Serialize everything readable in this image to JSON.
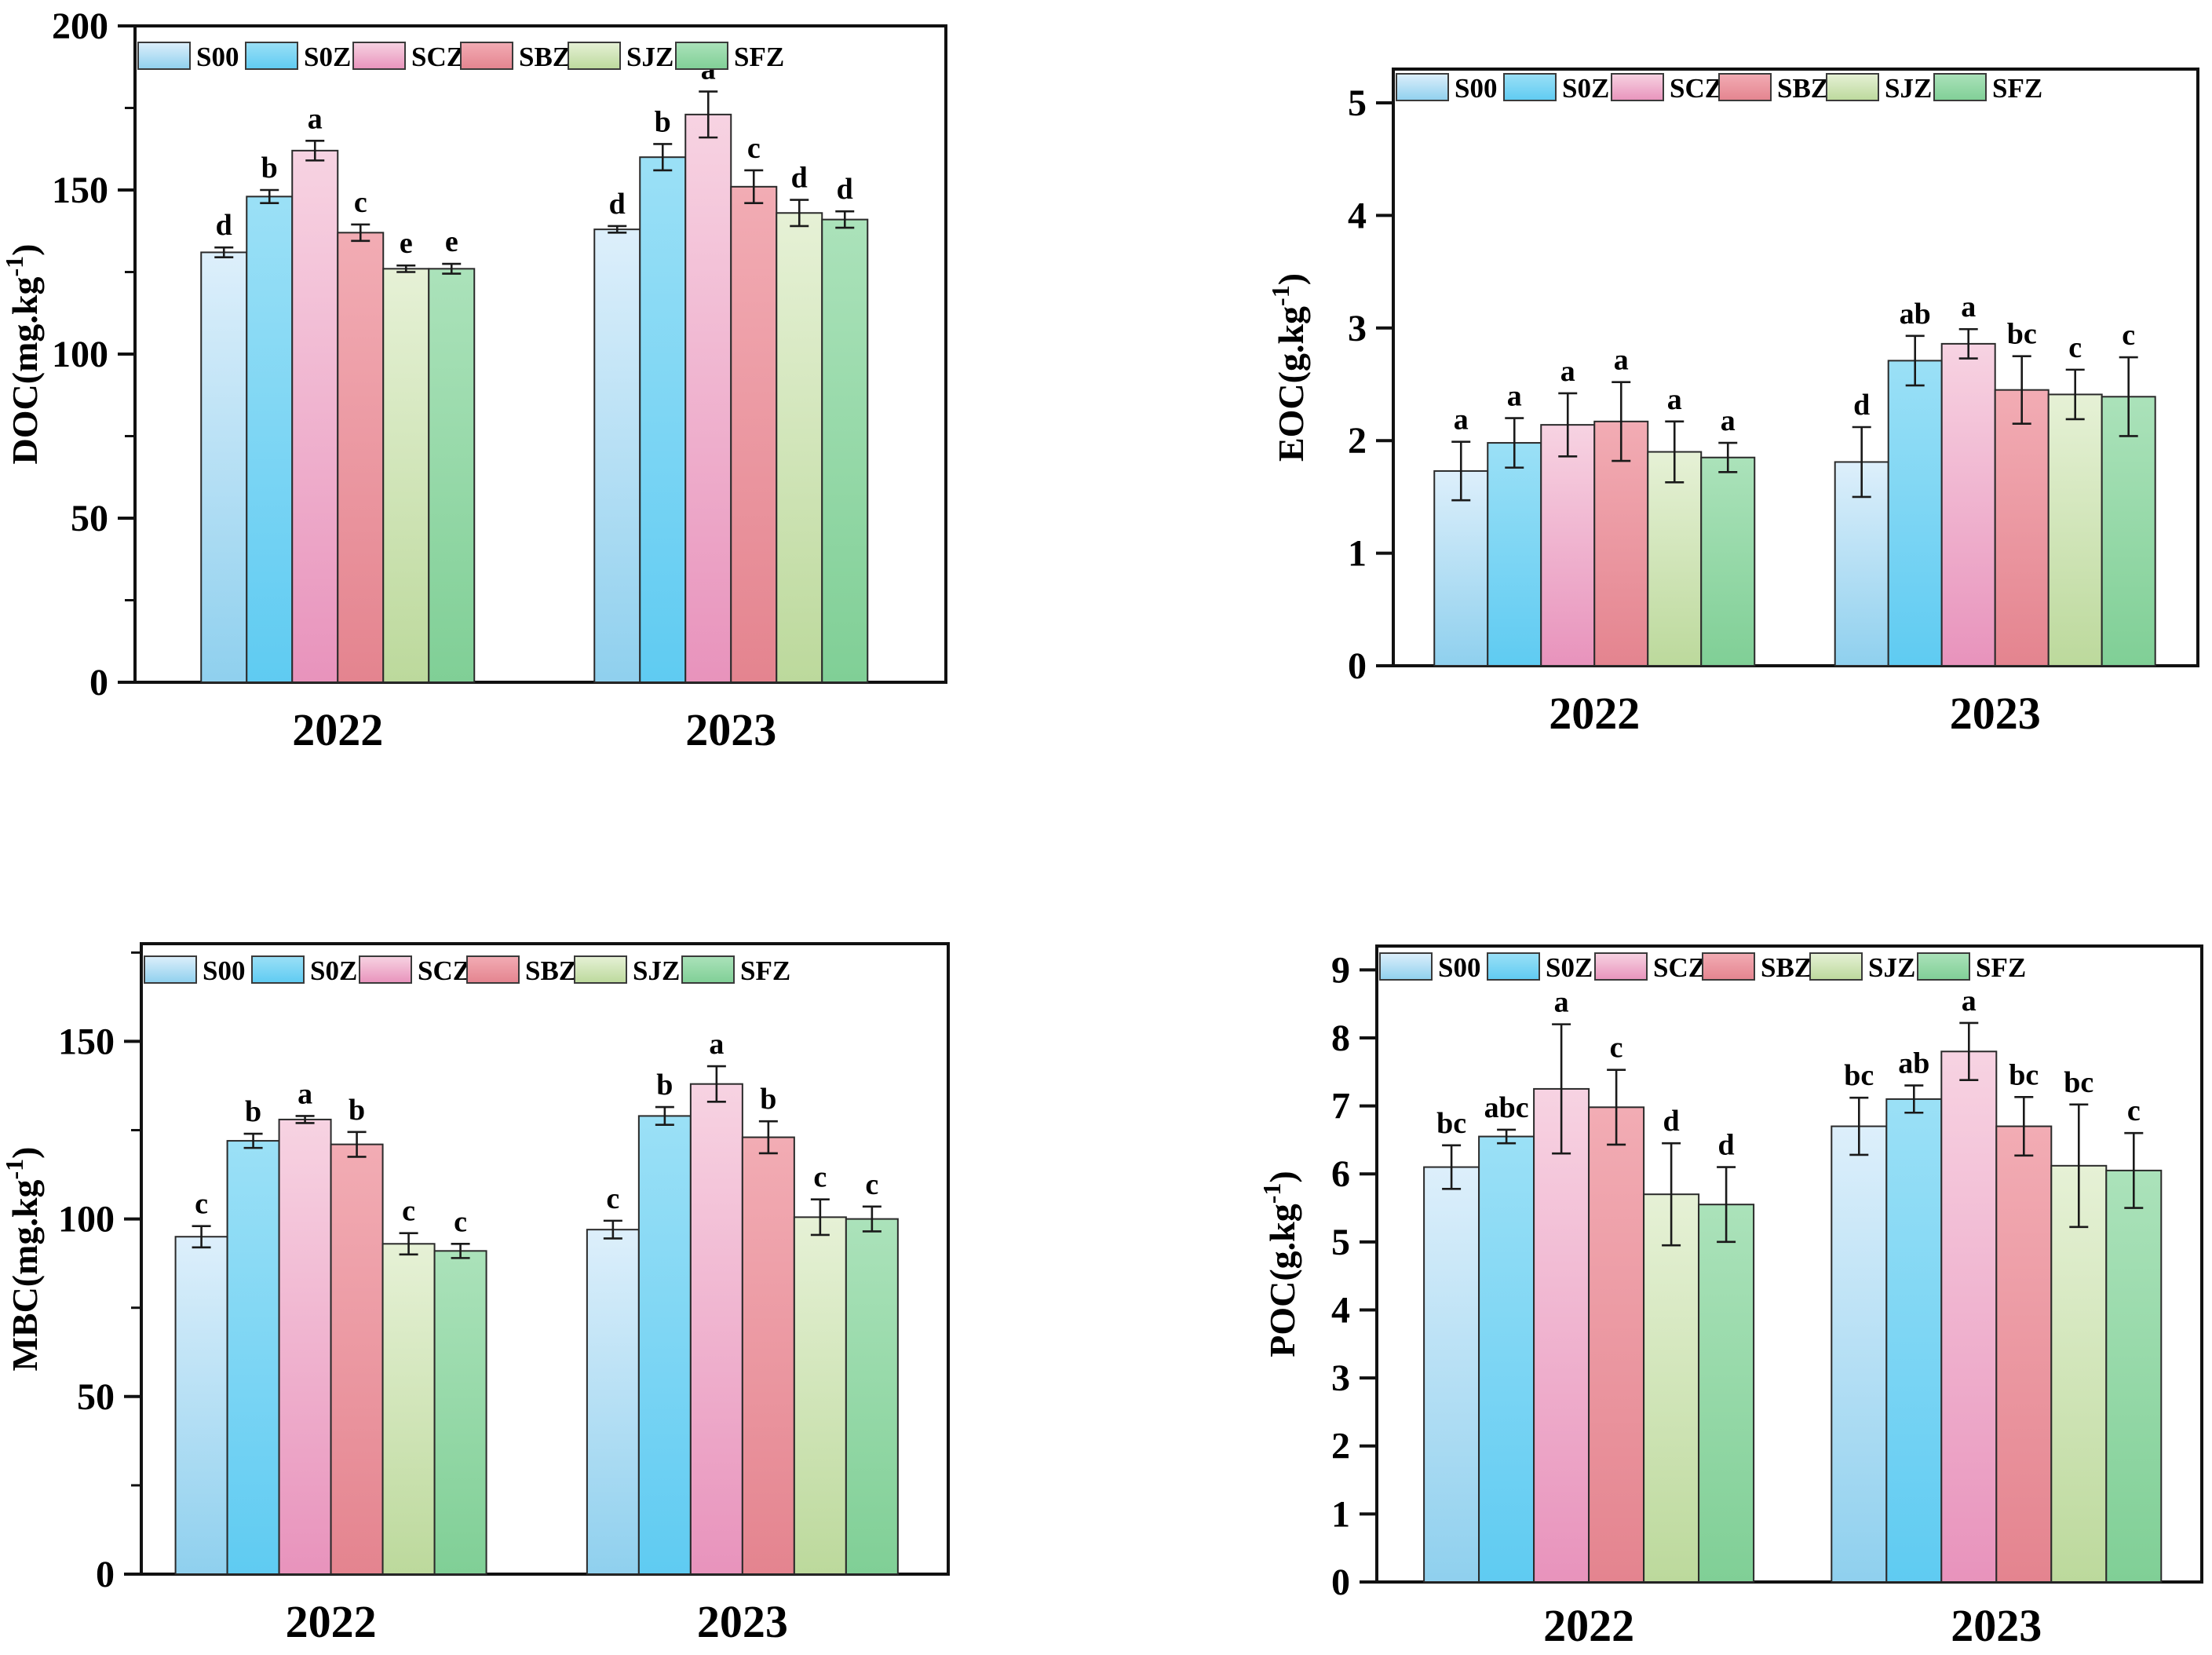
{
  "figure": {
    "background": "#ffffff",
    "years": [
      "2022",
      "2023"
    ],
    "legend_items": [
      "S00",
      "S0Z",
      "SCZ",
      "SBZ",
      "SJZ",
      "SFZ"
    ]
  },
  "palette": {
    "S00": {
      "top": "#ddeffb",
      "bottom": "#8fd0ee"
    },
    "S0Z": {
      "top": "#9be0f6",
      "bottom": "#5fcbf2"
    },
    "SCZ": {
      "top": "#f7d3e2",
      "bottom": "#e893bc"
    },
    "SBZ": {
      "top": "#f2acb4",
      "bottom": "#e4848f"
    },
    "SJZ": {
      "top": "#e6f1d6",
      "bottom": "#bcd99c"
    },
    "SFZ": {
      "top": "#abe2ba",
      "bottom": "#80cf96"
    },
    "bar_stroke": "#2a2a2a",
    "axis_color": "#111111",
    "error_color": "#1a1a1a"
  },
  "chart_data": [
    {
      "id": "DOC",
      "type": "bar",
      "title": "",
      "xlabel": "",
      "ylabel": "DOC(mg.kg⁻¹)",
      "categories": [
        "2022",
        "2023"
      ],
      "ylim": [
        0,
        200
      ],
      "ytick_step": 50,
      "minor_tick_step": 25,
      "grid": false,
      "legend_position": "top-inside",
      "series": [
        {
          "name": "S00",
          "values": [
            131,
            138
          ],
          "errors": [
            1.5,
            1
          ],
          "letters": [
            "d",
            "d"
          ]
        },
        {
          "name": "S0Z",
          "values": [
            148,
            160
          ],
          "errors": [
            2,
            4
          ],
          "letters": [
            "b",
            "b"
          ]
        },
        {
          "name": "SCZ",
          "values": [
            162,
            173
          ],
          "errors": [
            3,
            7
          ],
          "letters": [
            "a",
            "a"
          ]
        },
        {
          "name": "SBZ",
          "values": [
            137,
            151
          ],
          "errors": [
            2.5,
            5
          ],
          "letters": [
            "c",
            "c"
          ]
        },
        {
          "name": "SJZ",
          "values": [
            126,
            143
          ],
          "errors": [
            1,
            4
          ],
          "letters": [
            "e",
            "d"
          ]
        },
        {
          "name": "SFZ",
          "values": [
            126,
            141
          ],
          "errors": [
            1.5,
            2.5
          ],
          "letters": [
            "e",
            "d"
          ]
        }
      ]
    },
    {
      "id": "EOC",
      "type": "bar",
      "title": "",
      "xlabel": "",
      "ylabel": "EOC(g.kg⁻¹)",
      "categories": [
        "2022",
        "2023"
      ],
      "ylim": [
        0,
        5.3
      ],
      "ytick_step": 1,
      "minor_tick_step": 0,
      "grid": false,
      "legend_position": "top-inside",
      "series": [
        {
          "name": "S00",
          "values": [
            1.73,
            1.81
          ],
          "errors": [
            0.26,
            0.31
          ],
          "letters": [
            "a",
            "d"
          ]
        },
        {
          "name": "S0Z",
          "values": [
            1.98,
            2.71
          ],
          "errors": [
            0.22,
            0.22
          ],
          "letters": [
            "a",
            "ab"
          ]
        },
        {
          "name": "SCZ",
          "values": [
            2.14,
            2.86
          ],
          "errors": [
            0.28,
            0.13
          ],
          "letters": [
            "a",
            "a"
          ]
        },
        {
          "name": "SBZ",
          "values": [
            2.17,
            2.45
          ],
          "errors": [
            0.35,
            0.3
          ],
          "letters": [
            "a",
            "bc"
          ]
        },
        {
          "name": "SJZ",
          "values": [
            1.9,
            2.41
          ],
          "errors": [
            0.27,
            0.22
          ],
          "letters": [
            "a",
            "c"
          ]
        },
        {
          "name": "SFZ",
          "values": [
            1.85,
            2.39
          ],
          "errors": [
            0.13,
            0.35
          ],
          "letters": [
            "a",
            "c"
          ]
        }
      ]
    },
    {
      "id": "MBC",
      "type": "bar",
      "title": "",
      "xlabel": "",
      "ylabel": "MBC(mg.kg⁻¹)",
      "categories": [
        "2022",
        "2023"
      ],
      "ylim": [
        0,
        177.5
      ],
      "ytick_step": 50,
      "minor_tick_step": 25,
      "grid": false,
      "legend_position": "top-inside",
      "series": [
        {
          "name": "S00",
          "values": [
            95,
            97
          ],
          "errors": [
            3,
            2.5
          ],
          "letters": [
            "c",
            "c"
          ]
        },
        {
          "name": "S0Z",
          "values": [
            122,
            129
          ],
          "errors": [
            2,
            2.5
          ],
          "letters": [
            "b",
            "b"
          ]
        },
        {
          "name": "SCZ",
          "values": [
            128,
            138
          ],
          "errors": [
            1,
            5
          ],
          "letters": [
            "a",
            "a"
          ]
        },
        {
          "name": "SBZ",
          "values": [
            121,
            123
          ],
          "errors": [
            3.5,
            4.5
          ],
          "letters": [
            "b",
            "b"
          ]
        },
        {
          "name": "SJZ",
          "values": [
            93,
            100.5
          ],
          "errors": [
            3,
            5
          ],
          "letters": [
            "c",
            "c"
          ]
        },
        {
          "name": "SFZ",
          "values": [
            91,
            100
          ],
          "errors": [
            2,
            3.5
          ],
          "letters": [
            "c",
            "c"
          ]
        }
      ]
    },
    {
      "id": "POC",
      "type": "bar",
      "title": "",
      "xlabel": "",
      "ylabel": "POC(g.kg⁻¹)",
      "categories": [
        "2022",
        "2023"
      ],
      "ylim": [
        0,
        9.35
      ],
      "ytick_step": 1,
      "minor_tick_step": 0,
      "grid": false,
      "legend_position": "top-inside",
      "series": [
        {
          "name": "S00",
          "values": [
            6.1,
            6.7
          ],
          "errors": [
            0.32,
            0.42
          ],
          "letters": [
            "bc",
            "bc"
          ]
        },
        {
          "name": "S0Z",
          "values": [
            6.55,
            7.1
          ],
          "errors": [
            0.1,
            0.2
          ],
          "letters": [
            "abc",
            "ab"
          ]
        },
        {
          "name": "SCZ",
          "values": [
            7.25,
            7.8
          ],
          "errors": [
            0.95,
            0.42
          ],
          "letters": [
            "a",
            "a"
          ]
        },
        {
          "name": "SBZ",
          "values": [
            6.98,
            6.7
          ],
          "errors": [
            0.55,
            0.43
          ],
          "letters": [
            "c",
            "bc"
          ]
        },
        {
          "name": "SJZ",
          "values": [
            5.7,
            6.12
          ],
          "errors": [
            0.75,
            0.9
          ],
          "letters": [
            "d",
            "bc"
          ]
        },
        {
          "name": "SFZ",
          "values": [
            5.55,
            6.05
          ],
          "errors": [
            0.55,
            0.55
          ],
          "letters": [
            "d",
            "c"
          ]
        }
      ]
    }
  ]
}
